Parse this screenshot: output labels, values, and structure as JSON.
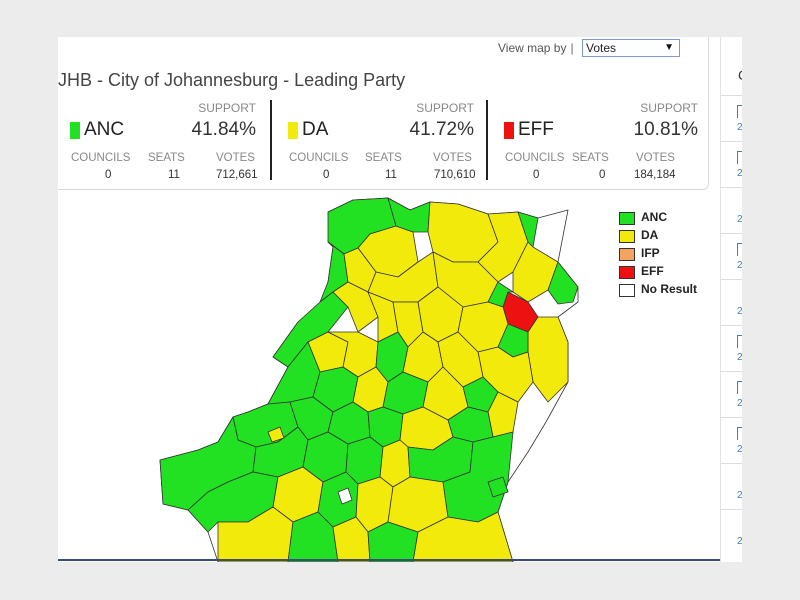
{
  "header": {
    "view_by_label": "View map by",
    "separator": "|",
    "view_by_value": "Votes",
    "title": "JHB - City of Johannesburg - Leading Party"
  },
  "parties": [
    {
      "name": "ANC",
      "color": "#22e022",
      "support_label": "SUPPORT",
      "support": "41.84%",
      "councils_label": "COUNCILS",
      "seats_label": "SEATS",
      "votes_label": "VOTES",
      "councils": "0",
      "seats": "11",
      "votes": "712,661"
    },
    {
      "name": "DA",
      "color": "#f2ea0a",
      "support_label": "SUPPORT",
      "support": "41.72%",
      "councils_label": "COUNCILS",
      "seats_label": "SEATS",
      "votes_label": "VOTES",
      "councils": "0",
      "seats": "11",
      "votes": "710,610"
    },
    {
      "name": "EFF",
      "color": "#ee1111",
      "support_label": "SUPPORT",
      "support": "10.81%",
      "councils_label": "COUNCILS",
      "seats_label": "SEATS",
      "votes_label": "VOTES",
      "councils": "0",
      "seats": "0",
      "votes": "184,184"
    }
  ],
  "legend": [
    {
      "label": "ANC",
      "color": "#22e022"
    },
    {
      "label": "DA",
      "color": "#f2ea0a"
    },
    {
      "label": "IFP",
      "color": "#f4a460"
    },
    {
      "label": "EFF",
      "color": "#ee1111"
    },
    {
      "label": "No Result",
      "color": "#ffffff"
    }
  ],
  "sidebar": {
    "caption": "C",
    "row_numbers": [
      "2",
      "2",
      "2",
      "2",
      "2",
      "2",
      "2",
      "2",
      "2",
      "2",
      "2",
      "2"
    ]
  },
  "colors": {
    "anc": "#22e022",
    "da": "#f2ea0a",
    "eff": "#ee1111",
    "no_result": "#ffffff",
    "border": "#333333"
  }
}
